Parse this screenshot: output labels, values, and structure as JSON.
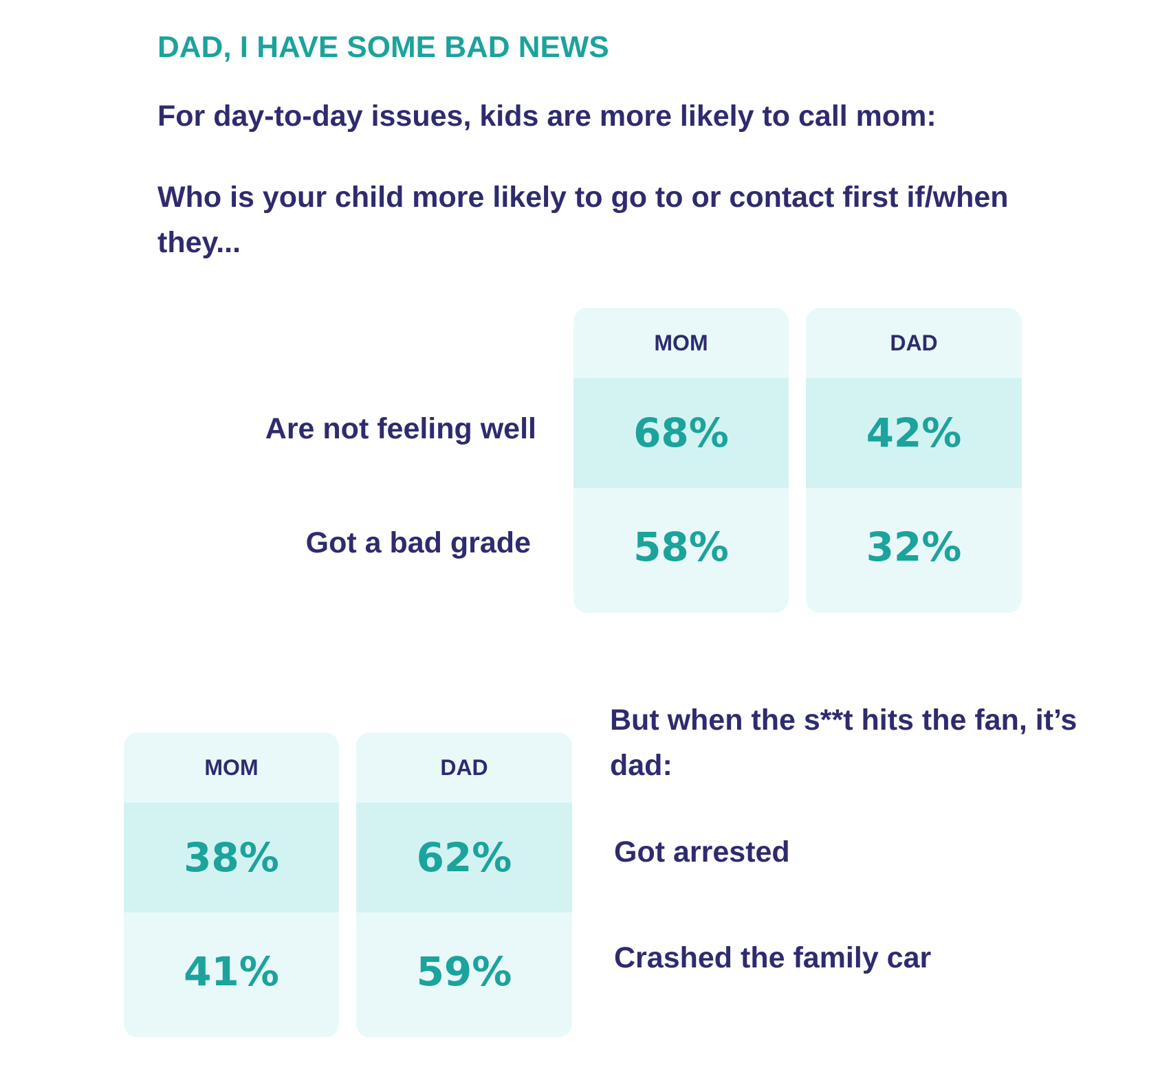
{
  "header": {
    "kicker": "DAD, I HAVE SOME BAD NEWS",
    "subtitle": "For day-to-day issues, kids are more likely to call mom:",
    "question": "Who is your child more likely to go to or contact first if/when they..."
  },
  "section2": {
    "lead": "But when the s**t hits the fan, it’s dad:"
  },
  "colors": {
    "accent_teal": "#1ba39c",
    "text_navy": "#2e2b6e",
    "column_bg": "#e9f9f9",
    "band_bg": "#d3f3f2"
  },
  "chart_data": [
    {
      "type": "table",
      "columns": [
        "MOM",
        "DAD"
      ],
      "rows": [
        {
          "label": "Are not feeling well",
          "mom": "68%",
          "dad": "42%"
        },
        {
          "label": "Got a bad grade",
          "mom": "58%",
          "dad": "32%"
        }
      ]
    },
    {
      "type": "table",
      "columns": [
        "MOM",
        "DAD"
      ],
      "rows": [
        {
          "label": "Got arrested",
          "mom": "38%",
          "dad": "62%"
        },
        {
          "label": "Crashed the family car",
          "mom": "41%",
          "dad": "59%"
        }
      ]
    }
  ]
}
